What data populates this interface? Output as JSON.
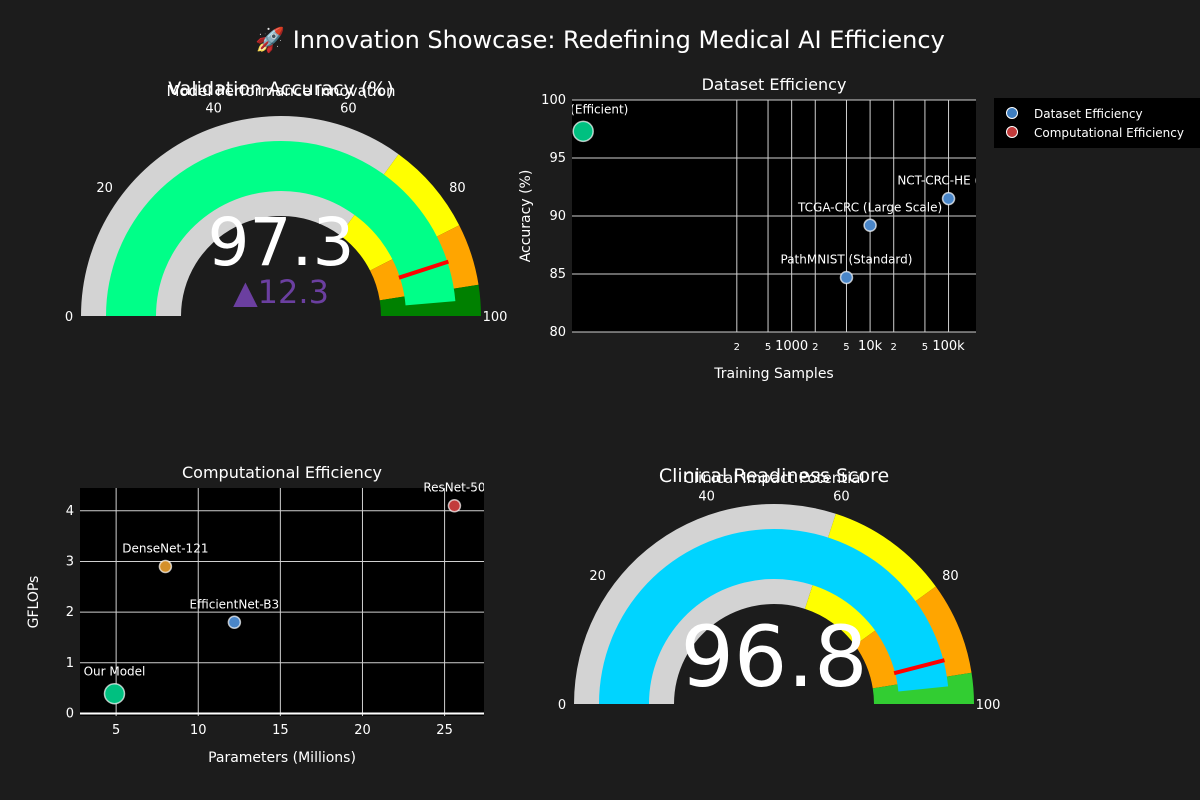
{
  "page": {
    "title": "🚀 Innovation Showcase: Redefining Medical AI Efficiency",
    "background": "#1c1c1c"
  },
  "legend": {
    "items": [
      {
        "label": "Dataset Efficiency",
        "color": "#3e7ec0"
      },
      {
        "label": "Computational Efficiency",
        "color": "#c23b3b"
      }
    ]
  },
  "chart_data": [
    {
      "type": "gauge",
      "title": "Validation Accuracy (%)",
      "subtitle": "Model Performance Innovation",
      "value": 97.3,
      "value_text": "97.3",
      "delta": 12.3,
      "delta_text": "▲12.3",
      "delta_color": "#6b3fa0",
      "range": [
        0,
        100
      ],
      "tick_values": [
        0,
        20,
        40,
        60,
        80,
        100
      ],
      "tick_labels": [
        "0",
        "20",
        "40",
        "60",
        "80",
        "100"
      ],
      "bar_color": "#00ff88",
      "steps": [
        {
          "range": [
            0,
            70
          ],
          "color": "#d3d3d3"
        },
        {
          "range": [
            70,
            85
          ],
          "color": "#ffff00"
        },
        {
          "range": [
            85,
            95
          ],
          "color": "#ffa500"
        },
        {
          "range": [
            95,
            100
          ],
          "color": "#008000"
        }
      ],
      "threshold": 90,
      "threshold_color": "#ff0000"
    },
    {
      "type": "scatter",
      "title": "Dataset Efficiency",
      "xlabel": "Training Samples",
      "ylabel": "Accuracy (%)",
      "x_scale": "log",
      "xlim_log10": [
        0.2,
        5.35
      ],
      "ylim": [
        80,
        100
      ],
      "x_tick_values": [
        200,
        500,
        1000,
        2000,
        5000,
        10000,
        20000,
        50000,
        100000
      ],
      "x_tick_labels": [
        "2",
        "5",
        "1000",
        "2",
        "5",
        "10k",
        "2",
        "5",
        "100k"
      ],
      "y_tick_values": [
        80,
        85,
        90,
        95,
        100
      ],
      "y_tick_labels": [
        "80",
        "85",
        "90",
        "95",
        "100"
      ],
      "series": [
        {
          "name": "Dataset Efficiency",
          "points": [
            {
              "label": "EBHI (Efficient)",
              "x": 2.2,
              "y": 97.3,
              "color": "#00c080",
              "size": "large"
            },
            {
              "label": "PathMNIST (Standard)",
              "x": 5000,
              "y": 84.7,
              "color": "#4a86c8",
              "size": "small"
            },
            {
              "label": "TCGA-CRC (Large Scale)",
              "x": 10000,
              "y": 89.2,
              "color": "#4a86c8",
              "size": "small"
            },
            {
              "label": "NCT-CRC-HE (Ber",
              "x": 100000,
              "y": 91.5,
              "color": "#4a86c8",
              "size": "small"
            }
          ]
        }
      ]
    },
    {
      "type": "scatter",
      "title": "Computational Efficiency",
      "xlabel": "Parameters (Millions)",
      "ylabel": "GFLOPs",
      "xlim": [
        2.8,
        27.4
      ],
      "ylim": [
        -0.05,
        4.45
      ],
      "x_tick_values": [
        5,
        10,
        15,
        20,
        25
      ],
      "x_tick_labels": [
        "5",
        "10",
        "15",
        "20",
        "25"
      ],
      "y_tick_values": [
        0,
        1,
        2,
        3,
        4
      ],
      "y_tick_labels": [
        "0",
        "1",
        "2",
        "3",
        "4"
      ],
      "series": [
        {
          "name": "Computational Efficiency",
          "points": [
            {
              "label": "Our Model",
              "x": 4.9,
              "y": 0.39,
              "color": "#00c080",
              "size": "large"
            },
            {
              "label": "DenseNet-121",
              "x": 8.0,
              "y": 2.9,
              "color": "#d4902a",
              "size": "small"
            },
            {
              "label": "EfficientNet-B3",
              "x": 12.2,
              "y": 1.8,
              "color": "#4a86c8",
              "size": "small"
            },
            {
              "label": "ResNet-50",
              "x": 25.6,
              "y": 4.1,
              "color": "#c23b3b",
              "size": "small"
            }
          ]
        }
      ]
    },
    {
      "type": "gauge",
      "title": "Clinical Readiness Score",
      "subtitle": "Clinical Impact Potential",
      "value": 96.8,
      "value_text": "96.8",
      "range": [
        0,
        100
      ],
      "tick_values": [
        0,
        20,
        40,
        60,
        80,
        100
      ],
      "tick_labels": [
        "0",
        "20",
        "40",
        "60",
        "80",
        "100"
      ],
      "bar_color": "#00d4ff",
      "steps": [
        {
          "range": [
            0,
            60
          ],
          "color": "#d3d3d3"
        },
        {
          "range": [
            60,
            80
          ],
          "color": "#ffff00"
        },
        {
          "range": [
            80,
            95
          ],
          "color": "#ffa500"
        },
        {
          "range": [
            95,
            100
          ],
          "color": "#32cd32"
        }
      ],
      "threshold": 92,
      "threshold_color": "#ff0000"
    }
  ]
}
